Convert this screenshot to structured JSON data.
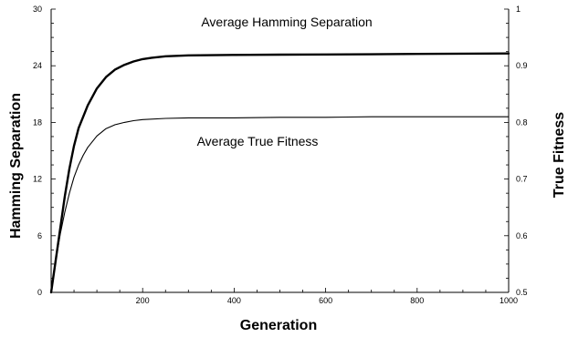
{
  "chart_data": {
    "type": "line",
    "xlabel": "Generation",
    "ylabel_left": "Hamming Separation",
    "ylabel_right": "True Fitness",
    "xlim": [
      0,
      1000
    ],
    "ylim_left": [
      0,
      30
    ],
    "ylim_right": [
      0.5,
      1.0
    ],
    "x_ticks": [
      200,
      400,
      600,
      800,
      1000
    ],
    "y_left_ticks": [
      0,
      6,
      12,
      18,
      24,
      30
    ],
    "y_right_ticks": [
      0.5,
      0.6,
      0.7,
      0.8,
      0.9,
      1.0
    ],
    "x_tick_labels": [
      "200",
      "400",
      "600",
      "800",
      "1000"
    ],
    "y_left_tick_labels": [
      "0",
      "6",
      "12",
      "18",
      "24",
      "30"
    ],
    "y_right_tick_labels": [
      "0.5",
      "0.6",
      "0.7",
      "0.8",
      "0.9",
      "1"
    ],
    "grid": false,
    "annotations": [
      {
        "text": "Average Hamming Separation",
        "series": 0
      },
      {
        "text": "Average True Fitness",
        "series": 1
      }
    ],
    "series": [
      {
        "name": "Average Hamming Separation",
        "axis": "left",
        "stroke": "#000000",
        "weight": "bold",
        "x": [
          0,
          10,
          20,
          30,
          40,
          50,
          60,
          70,
          80,
          100,
          120,
          140,
          160,
          180,
          200,
          220,
          250,
          300,
          400,
          500,
          600,
          700,
          800,
          900,
          1000
        ],
        "y": [
          0,
          3.4,
          6.8,
          10.2,
          13.1,
          15.5,
          17.4,
          18.6,
          19.8,
          21.6,
          22.8,
          23.6,
          24.1,
          24.45,
          24.7,
          24.85,
          25.0,
          25.1,
          25.15,
          25.18,
          25.2,
          25.22,
          25.25,
          25.28,
          25.3
        ]
      },
      {
        "name": "Average True Fitness",
        "axis": "right",
        "stroke": "#000000",
        "weight": "thin",
        "x": [
          0,
          10,
          20,
          30,
          40,
          50,
          60,
          70,
          80,
          100,
          120,
          140,
          160,
          180,
          200,
          250,
          300,
          400,
          500,
          600,
          700,
          800,
          900,
          1000
        ],
        "y": [
          0.5,
          0.555,
          0.603,
          0.642,
          0.675,
          0.703,
          0.725,
          0.742,
          0.756,
          0.776,
          0.789,
          0.796,
          0.8,
          0.803,
          0.805,
          0.807,
          0.808,
          0.808,
          0.809,
          0.809,
          0.81,
          0.81,
          0.81,
          0.81
        ]
      }
    ]
  }
}
